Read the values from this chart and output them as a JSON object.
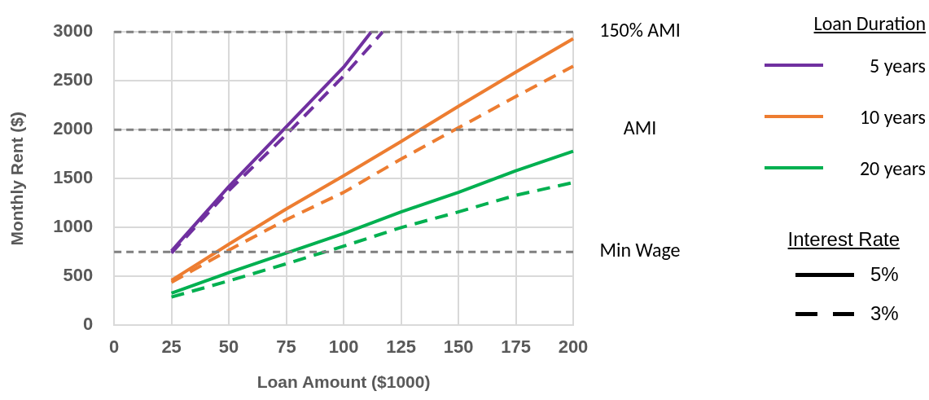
{
  "chart_data": {
    "type": "line",
    "xlabel": "Loan Amount ($1000)",
    "ylabel": "Monthly Rent ($)",
    "legend_title": "Loan Duration",
    "legend": "right",
    "grid": true,
    "marker": "none",
    "xlim": [
      0,
      200
    ],
    "xticks": [
      0,
      25,
      50,
      75,
      100,
      125,
      150,
      175,
      200
    ],
    "ylim": [
      0,
      3000
    ],
    "yticks": [
      0,
      500,
      1000,
      1500,
      2000,
      2500,
      3000
    ],
    "series": [
      {
        "name": "5 years",
        "color": "#7030a0",
        "line_style": "solid",
        "x": [
          25,
          50,
          75,
          100,
          112
        ],
        "values": [
          760,
          1420,
          2030,
          2640,
          3000
        ]
      },
      {
        "color": "#7030a0",
        "line_style": "dashed",
        "x": [
          25,
          50,
          75,
          100,
          117
        ],
        "values": [
          740,
          1380,
          1950,
          2550,
          3000
        ]
      },
      {
        "name": "10 years",
        "color": "#ed7d31",
        "line_style": "solid",
        "x": [
          25,
          50,
          75,
          100,
          125,
          150,
          175,
          200
        ],
        "values": [
          460,
          830,
          1190,
          1530,
          1880,
          2240,
          2590,
          2930
        ]
      },
      {
        "color": "#ed7d31",
        "line_style": "dashed",
        "x": [
          25,
          50,
          75,
          100,
          125,
          150,
          175,
          200
        ],
        "values": [
          440,
          770,
          1080,
          1360,
          1700,
          2020,
          2340,
          2650
        ]
      },
      {
        "name": "20 years",
        "color": "#00b050",
        "line_style": "solid",
        "x": [
          25,
          50,
          75,
          100,
          125,
          150,
          175,
          200
        ],
        "values": [
          330,
          540,
          740,
          940,
          1160,
          1360,
          1580,
          1780
        ]
      },
      {
        "color": "#00b050",
        "line_style": "dashed",
        "x": [
          25,
          50,
          75,
          100,
          125,
          150,
          175,
          200
        ],
        "values": [
          290,
          455,
          630,
          810,
          1000,
          1160,
          1330,
          1460
        ]
      }
    ],
    "ref_lines": [
      {
        "axis": "y",
        "value": 3000,
        "label": "150% AMI",
        "color": "#808080",
        "line_style": "dashed"
      },
      {
        "axis": "y",
        "value": 2000,
        "label": "AMI",
        "color": "#808080",
        "line_style": "dashed"
      },
      {
        "axis": "y",
        "value": 750,
        "label": "Min Wage",
        "color": "#808080",
        "line_style": "dashed"
      }
    ],
    "annotations": [
      "Interest Rate",
      "5%",
      "3%"
    ]
  }
}
